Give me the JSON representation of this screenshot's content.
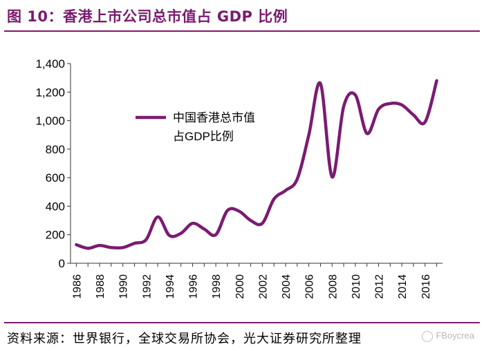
{
  "header": {
    "title": "图 10：香港上市公司总市值占 GDP 比例"
  },
  "footer": {
    "source": "资料来源：世界银行，全球交易所协会，光大证券研究所整理",
    "watermark": "FBoycrea"
  },
  "colors": {
    "accent": "#7a1a6e",
    "series": "#7b1b72"
  },
  "chart_data": {
    "type": "line",
    "title": "图 10：香港上市公司总市值占 GDP 比例",
    "xlabel": "",
    "ylabel": "",
    "ylim": [
      0,
      1400
    ],
    "xlim": [
      1986,
      2017
    ],
    "yticks": [
      0,
      200,
      400,
      600,
      800,
      1000,
      1200,
      1400
    ],
    "ytick_labels": [
      "0",
      "200",
      "400",
      "600",
      "800",
      "1,000",
      "1,200",
      "1,400"
    ],
    "xticks": [
      1986,
      1988,
      1990,
      1992,
      1994,
      1996,
      1998,
      2000,
      2002,
      2004,
      2006,
      2008,
      2010,
      2012,
      2014,
      2016
    ],
    "grid": false,
    "legend_position": "upper-left",
    "series": [
      {
        "name": "中国香港总市值占GDP比例",
        "legend_lines": [
          "中国香港总市值",
          "占GDP比例"
        ],
        "x": [
          1986,
          1987,
          1988,
          1989,
          1990,
          1991,
          1992,
          1993,
          1994,
          1995,
          1996,
          1997,
          1998,
          1999,
          2000,
          2001,
          2002,
          2003,
          2004,
          2005,
          2006,
          2007,
          2008,
          2009,
          2010,
          2011,
          2012,
          2013,
          2014,
          2015,
          2016,
          2017
        ],
        "values": [
          130,
          105,
          125,
          110,
          110,
          140,
          165,
          325,
          195,
          210,
          280,
          240,
          200,
          370,
          365,
          300,
          280,
          450,
          510,
          590,
          900,
          1260,
          605,
          1100,
          1180,
          910,
          1080,
          1120,
          1110,
          1040,
          990,
          1280
        ]
      }
    ]
  }
}
